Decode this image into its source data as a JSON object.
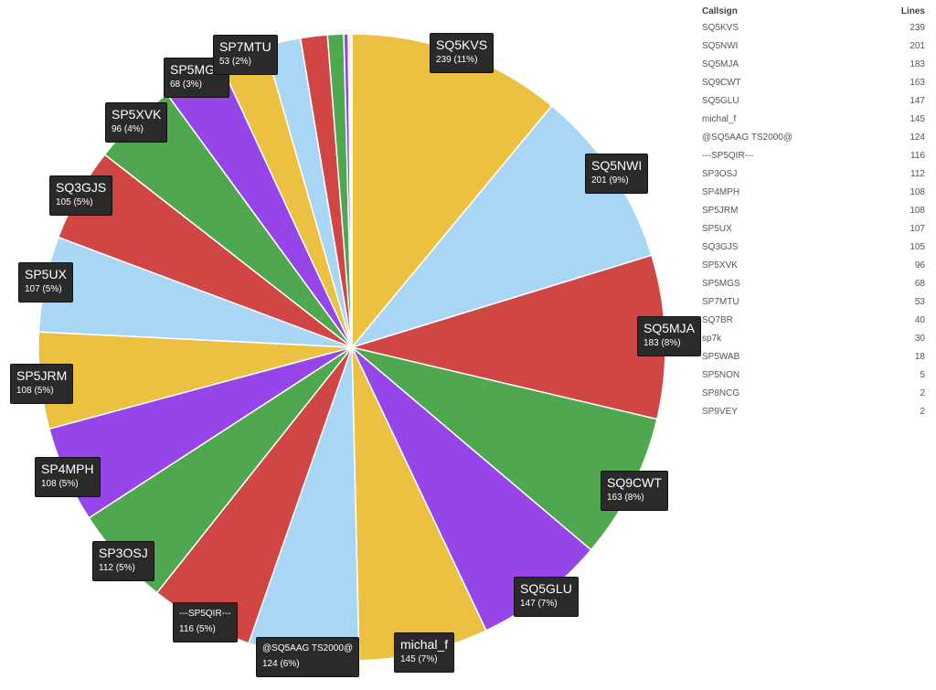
{
  "chart_data": {
    "type": "pie",
    "colors": [
      "#ecc142",
      "#a9d6f5",
      "#cf4645",
      "#4fa850",
      "#9646e8"
    ],
    "slices": [
      {
        "label": "SQ5KVS",
        "value": 239,
        "text": "239 (11%)"
      },
      {
        "label": "SQ5NWI",
        "value": 201,
        "text": "201 (9%)"
      },
      {
        "label": "SQ5MJA",
        "value": 183,
        "text": "183 (8%)"
      },
      {
        "label": "SQ9CWT",
        "value": 163,
        "text": "163 (8%)"
      },
      {
        "label": "SQ5GLU",
        "value": 147,
        "text": "147 (7%)"
      },
      {
        "label": "michal_f",
        "value": 145,
        "text": "145 (7%)"
      },
      {
        "label": "@SQ5AAG TS2000@",
        "value": 124,
        "text": "124 (6%)"
      },
      {
        "label": "---SP5QIR---",
        "value": 116,
        "text": "116 (5%)"
      },
      {
        "label": "SP3OSJ",
        "value": 112,
        "text": "112 (5%)"
      },
      {
        "label": "SP4MPH",
        "value": 108,
        "text": "108 (5%)"
      },
      {
        "label": "SP5JRM",
        "value": 108,
        "text": "108 (5%)"
      },
      {
        "label": "SP5UX",
        "value": 107,
        "text": "107 (5%)"
      },
      {
        "label": "SQ3GJS",
        "value": 105,
        "text": "105 (5%)"
      },
      {
        "label": "SP5XVK",
        "value": 96,
        "text": "96 (4%)"
      },
      {
        "label": "SP5MGS",
        "value": 68,
        "text": "68 (3%)"
      },
      {
        "label": "SP7MTU",
        "value": 53,
        "text": "53 (2%)"
      },
      {
        "label": "SQ7BR",
        "value": 40,
        "text": ""
      },
      {
        "label": "sp7k",
        "value": 30,
        "text": ""
      },
      {
        "label": "SP5WAB",
        "value": 18,
        "text": ""
      },
      {
        "label": "SP5NON",
        "value": 5,
        "text": ""
      },
      {
        "label": "SP8NCG",
        "value": 2,
        "text": ""
      },
      {
        "label": "SP9VEY",
        "value": 2,
        "text": ""
      }
    ]
  },
  "table": {
    "header_callsign": "Callsign",
    "header_lines": "Lines"
  }
}
